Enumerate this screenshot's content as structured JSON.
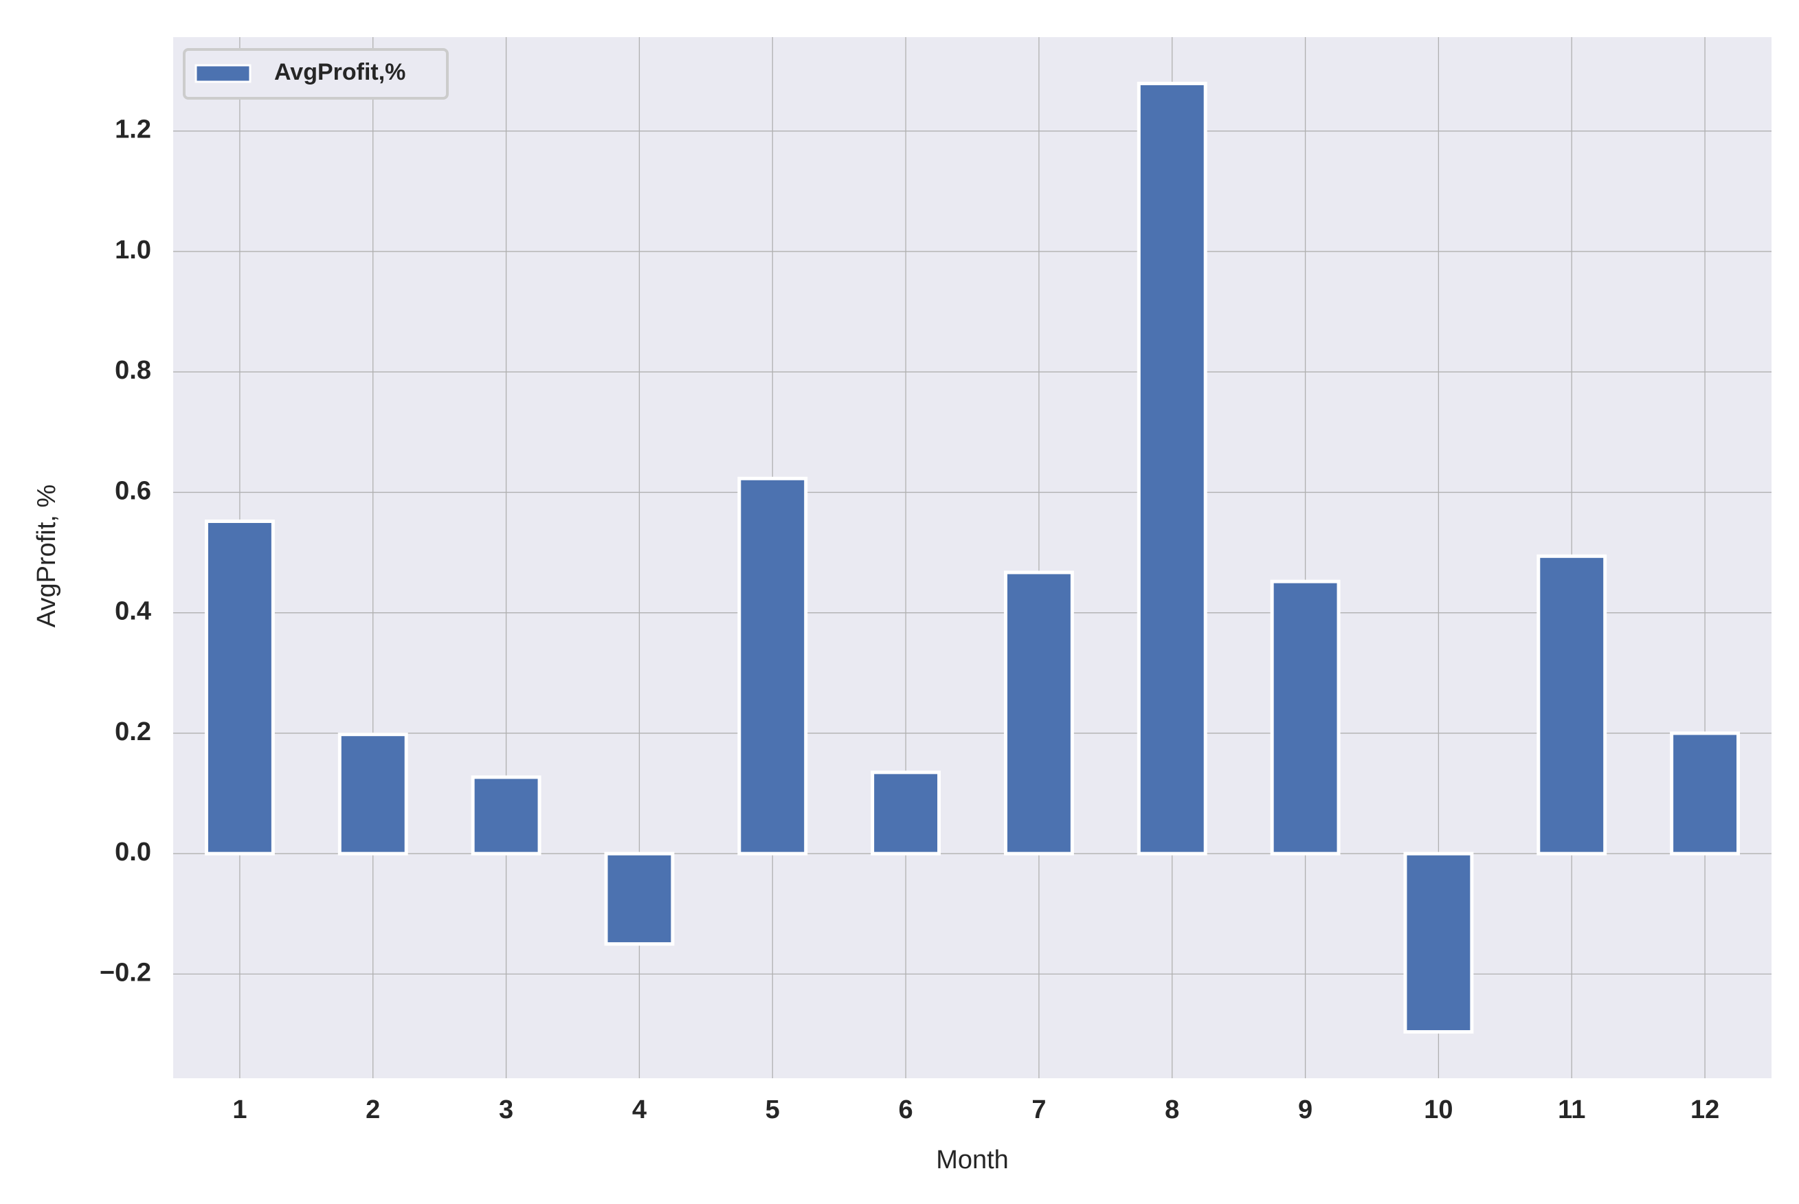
{
  "chart_data": {
    "type": "bar",
    "xlabel": "Month",
    "ylabel": "AvgProfit, %",
    "categories": [
      "1",
      "2",
      "3",
      "4",
      "5",
      "6",
      "7",
      "8",
      "9",
      "10",
      "11",
      "12"
    ],
    "series": [
      {
        "name": "AvgProfit,%",
        "color": "#4c72b0",
        "values": [
          0.552,
          0.198,
          0.127,
          -0.15,
          0.623,
          0.135,
          0.467,
          1.279,
          0.452,
          -0.296,
          0.494,
          0.2
        ]
      }
    ],
    "ylim": [
      -0.373,
      1.356
    ],
    "yticks": [
      {
        "value": -0.2,
        "label": "−0.2"
      },
      {
        "value": 0,
        "label": "0.0"
      },
      0.2,
      0.4,
      0.6,
      0.8,
      {
        "value": 1,
        "label": "1.0"
      },
      1.2
    ],
    "grid": true,
    "legend": "upper left"
  }
}
